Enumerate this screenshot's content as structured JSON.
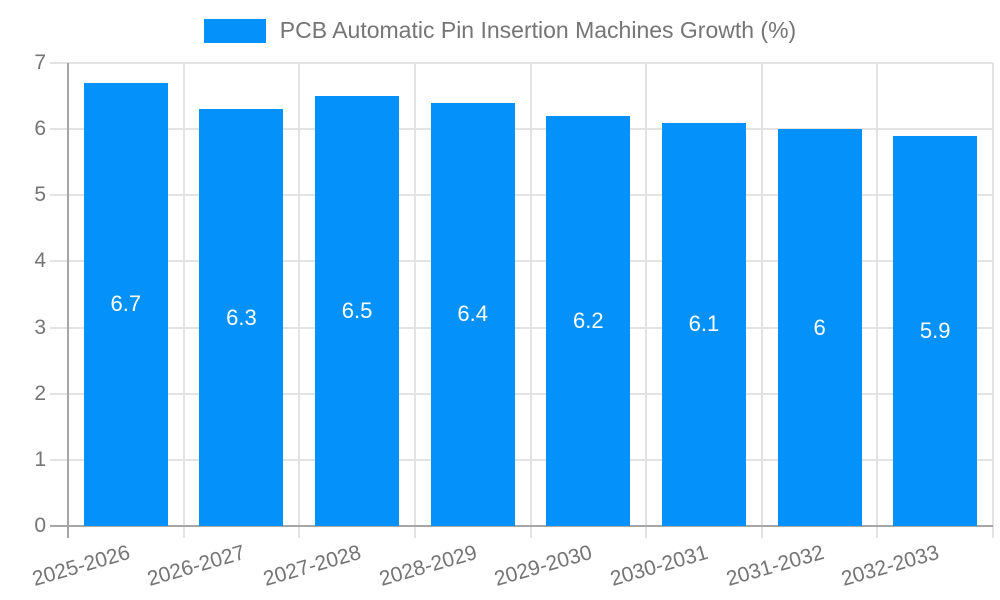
{
  "chart_data": {
    "type": "bar",
    "title": "PCB Automatic Pin Insertion Machines Growth (%)",
    "categories": [
      "2025-2026",
      "2026-2027",
      "2027-2028",
      "2028-2029",
      "2029-2030",
      "2030-2031",
      "2031-2032",
      "2032-2033"
    ],
    "values": [
      6.7,
      6.3,
      6.5,
      6.4,
      6.2,
      6.1,
      6,
      5.9
    ],
    "bar_labels": [
      "6.7",
      "6.3",
      "6.5",
      "6.4",
      "6.2",
      "6.1",
      "6",
      "5.9"
    ],
    "xlabel": "",
    "ylabel": "",
    "ylim": [
      0,
      7
    ],
    "yticks": [
      0,
      1,
      2,
      3,
      4,
      5,
      6,
      7
    ],
    "grid": true,
    "legend_position": "top",
    "colors": {
      "bar": "#0591fa",
      "axis_text": "#757575",
      "grid": "#e3e3e3",
      "axis_line": "#a6a6a6",
      "bar_label": "#ffffff",
      "background": "#ffffff"
    }
  }
}
